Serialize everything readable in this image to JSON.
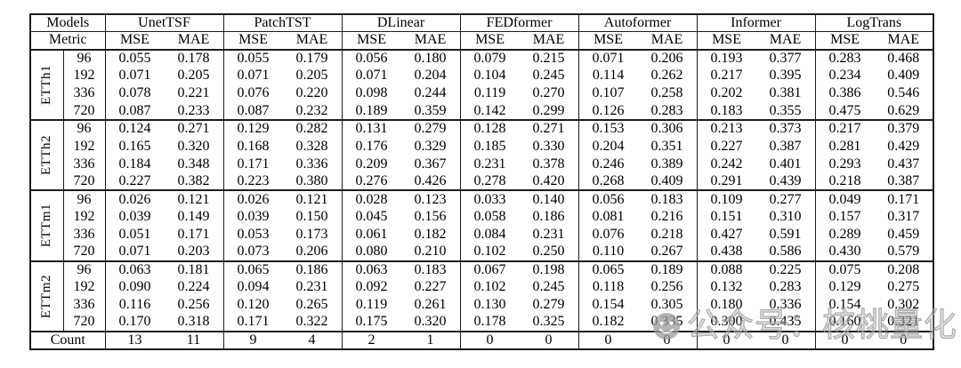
{
  "table": {
    "corner_models_label": "Models",
    "corner_metric_label": "Metric",
    "models": [
      "UnetTSF",
      "PatchTST",
      "DLinear",
      "FEDformer",
      "Autoformer",
      "Informer",
      "LogTrans"
    ],
    "metrics": [
      "MSE",
      "MAE"
    ],
    "datasets": [
      {
        "name": "ETTh1",
        "rows": [
          {
            "horizon": "96",
            "values": [
              "0.055",
              "0.178",
              "0.055",
              "0.179",
              "0.056",
              "0.180",
              "0.079",
              "0.215",
              "0.071",
              "0.206",
              "0.193",
              "0.377",
              "0.283",
              "0.468"
            ],
            "bold": [
              0,
              1,
              2
            ]
          },
          {
            "horizon": "192",
            "values": [
              "0.071",
              "0.205",
              "0.071",
              "0.205",
              "0.071",
              "0.204",
              "0.104",
              "0.245",
              "0.114",
              "0.262",
              "0.217",
              "0.395",
              "0.234",
              "0.409"
            ],
            "bold": [
              0,
              2,
              4,
              5
            ]
          },
          {
            "horizon": "336",
            "values": [
              "0.078",
              "0.221",
              "0.076",
              "0.220",
              "0.098",
              "0.244",
              "0.119",
              "0.270",
              "0.107",
              "0.258",
              "0.202",
              "0.381",
              "0.386",
              "0.546"
            ],
            "bold": [
              2,
              3
            ]
          },
          {
            "horizon": "720",
            "values": [
              "0.087",
              "0.233",
              "0.087",
              "0.232",
              "0.189",
              "0.359",
              "0.142",
              "0.299",
              "0.126",
              "0.283",
              "0.183",
              "0.355",
              "0.475",
              "0.629"
            ],
            "bold": [
              0,
              2,
              3
            ]
          }
        ]
      },
      {
        "name": "ETTh2",
        "rows": [
          {
            "horizon": "96",
            "values": [
              "0.124",
              "0.271",
              "0.129",
              "0.282",
              "0.131",
              "0.279",
              "0.128",
              "0.271",
              "0.153",
              "0.306",
              "0.213",
              "0.373",
              "0.217",
              "0.379"
            ],
            "bold": [
              0,
              1
            ]
          },
          {
            "horizon": "192",
            "values": [
              "0.165",
              "0.320",
              "0.168",
              "0.328",
              "0.176",
              "0.329",
              "0.185",
              "0.330",
              "0.204",
              "0.351",
              "0.227",
              "0.387",
              "0.281",
              "0.429"
            ],
            "bold": [
              0,
              1
            ]
          },
          {
            "horizon": "336",
            "values": [
              "0.184",
              "0.348",
              "0.171",
              "0.336",
              "0.209",
              "0.367",
              "0.231",
              "0.378",
              "0.246",
              "0.389",
              "0.242",
              "0.401",
              "0.293",
              "0.437"
            ],
            "bold": [
              2,
              3
            ]
          },
          {
            "horizon": "720",
            "values": [
              "0.227",
              "0.382",
              "0.223",
              "0.380",
              "0.276",
              "0.426",
              "0.278",
              "0.420",
              "0.268",
              "0.409",
              "0.291",
              "0.439",
              "0.218",
              "0.387"
            ],
            "bold": [
              2,
              3
            ]
          }
        ]
      },
      {
        "name": "ETTm1",
        "rows": [
          {
            "horizon": "96",
            "values": [
              "0.026",
              "0.121",
              "0.026",
              "0.121",
              "0.028",
              "0.123",
              "0.033",
              "0.140",
              "0.056",
              "0.183",
              "0.109",
              "0.277",
              "0.049",
              "0.171"
            ],
            "bold": [
              0,
              1,
              2,
              3
            ]
          },
          {
            "horizon": "192",
            "values": [
              "0.039",
              "0.149",
              "0.039",
              "0.150",
              "0.045",
              "0.156",
              "0.058",
              "0.186",
              "0.081",
              "0.216",
              "0.151",
              "0.310",
              "0.157",
              "0.317"
            ],
            "bold": [
              0,
              1,
              2
            ]
          },
          {
            "horizon": "336",
            "values": [
              "0.051",
              "0.171",
              "0.053",
              "0.173",
              "0.061",
              "0.182",
              "0.084",
              "0.231",
              "0.076",
              "0.218",
              "0.427",
              "0.591",
              "0.289",
              "0.459"
            ],
            "bold": [
              0,
              1,
              2
            ]
          },
          {
            "horizon": "720",
            "values": [
              "0.071",
              "0.203",
              "0.073",
              "0.206",
              "0.080",
              "0.210",
              "0.102",
              "0.250",
              "0.110",
              "0.267",
              "0.438",
              "0.586",
              "0.430",
              "0.579"
            ],
            "bold": [
              0,
              1
            ]
          }
        ]
      },
      {
        "name": "ETTm2",
        "rows": [
          {
            "horizon": "96",
            "values": [
              "0.063",
              "0.181",
              "0.065",
              "0.186",
              "0.063",
              "0.183",
              "0.067",
              "0.198",
              "0.065",
              "0.189",
              "0.088",
              "0.225",
              "0.075",
              "0.208"
            ],
            "bold": [
              0,
              1,
              4
            ]
          },
          {
            "horizon": "192",
            "values": [
              "0.090",
              "0.224",
              "0.094",
              "0.231",
              "0.092",
              "0.227",
              "0.102",
              "0.245",
              "0.118",
              "0.256",
              "0.132",
              "0.283",
              "0.129",
              "0.275"
            ],
            "bold": [
              0,
              1
            ]
          },
          {
            "horizon": "336",
            "values": [
              "0.116",
              "0.256",
              "0.120",
              "0.265",
              "0.119",
              "0.261",
              "0.130",
              "0.279",
              "0.154",
              "0.305",
              "0.180",
              "0.336",
              "0.154",
              "0.302"
            ],
            "bold": [
              0,
              1
            ]
          },
          {
            "horizon": "720",
            "values": [
              "0.170",
              "0.318",
              "0.171",
              "0.322",
              "0.175",
              "0.320",
              "0.178",
              "0.325",
              "0.182",
              "0.335",
              "0.300",
              "0.435",
              "0.160",
              "0.321"
            ],
            "bold": [
              0,
              1
            ]
          }
        ]
      }
    ],
    "count_row": {
      "label": "Count",
      "values": [
        "13",
        "11",
        "9",
        "4",
        "2",
        "1",
        "0",
        "0",
        "0",
        "0",
        "0",
        "0",
        "0",
        "0"
      ]
    }
  },
  "watermark": {
    "icon": "chat-smiley-face-icon",
    "text": "公众号：核桃量化",
    "color": "#a6a6a6"
  }
}
